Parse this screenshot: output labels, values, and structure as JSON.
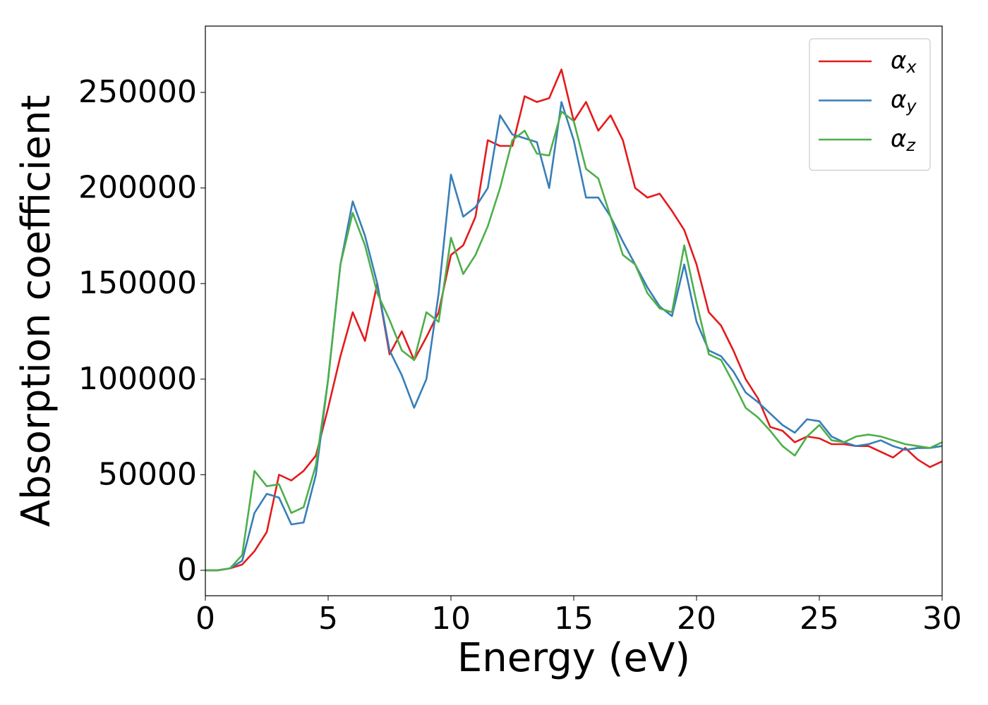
{
  "chart_data": {
    "type": "line",
    "xlabel": "Energy (eV)",
    "ylabel": "Absorption coefficient",
    "x": [
      0,
      0.5,
      1,
      1.5,
      2,
      2.5,
      3,
      3.5,
      4,
      4.5,
      5,
      5.5,
      6,
      6.5,
      7,
      7.5,
      8,
      8.5,
      9,
      9.5,
      10,
      10.5,
      11,
      11.5,
      12,
      12.5,
      13,
      13.5,
      14,
      14.5,
      15,
      15.5,
      16,
      16.5,
      17,
      17.5,
      18,
      18.5,
      19,
      19.5,
      20,
      20.5,
      21,
      21.5,
      22,
      22.5,
      23,
      23.5,
      24,
      24.5,
      25,
      25.5,
      26,
      26.5,
      27,
      27.5,
      28,
      28.5,
      29,
      29.5,
      30
    ],
    "series": [
      {
        "name": "αx",
        "color": "#e41a1c",
        "values": [
          0,
          0,
          1000,
          3000,
          10000,
          20000,
          50000,
          47000,
          52000,
          60000,
          85000,
          112000,
          135000,
          120000,
          150000,
          113000,
          125000,
          110000,
          122000,
          135000,
          165000,
          170000,
          185000,
          225000,
          222000,
          222000,
          248000,
          245000,
          247000,
          262000,
          235000,
          245000,
          230000,
          238000,
          225000,
          200000,
          195000,
          197000,
          188000,
          178000,
          160000,
          135000,
          128000,
          115000,
          100000,
          90000,
          75000,
          73000,
          67000,
          70000,
          69000,
          66000,
          66000,
          65000,
          65000,
          62000,
          59000,
          64000,
          58000,
          54000,
          57000
        ]
      },
      {
        "name": "αy",
        "color": "#377eb8",
        "values": [
          0,
          0,
          1000,
          5000,
          30000,
          40000,
          38000,
          24000,
          25000,
          50000,
          100000,
          160000,
          193000,
          175000,
          150000,
          115000,
          102000,
          85000,
          100000,
          145000,
          207000,
          185000,
          190000,
          200000,
          238000,
          228000,
          226000,
          224000,
          200000,
          245000,
          225000,
          195000,
          195000,
          185000,
          172000,
          160000,
          148000,
          138000,
          133000,
          160000,
          130000,
          115000,
          112000,
          104000,
          93000,
          88000,
          82000,
          76000,
          72000,
          79000,
          78000,
          70000,
          67000,
          65000,
          66000,
          68000,
          65000,
          63000,
          64000,
          64000,
          65000
        ]
      },
      {
        "name": "αz",
        "color": "#4daf4a",
        "values": [
          0,
          0,
          1000,
          8000,
          52000,
          44000,
          45000,
          30000,
          33000,
          55000,
          100000,
          160000,
          187000,
          170000,
          145000,
          131000,
          115000,
          110000,
          135000,
          130000,
          174000,
          155000,
          165000,
          180000,
          200000,
          225000,
          230000,
          218000,
          217000,
          240000,
          235000,
          210000,
          205000,
          185000,
          165000,
          160000,
          145000,
          137000,
          135000,
          170000,
          140000,
          113000,
          110000,
          98000,
          85000,
          80000,
          73000,
          65000,
          60000,
          70000,
          76000,
          68000,
          67000,
          70000,
          71000,
          70000,
          68000,
          66000,
          65000,
          64000,
          67000
        ]
      }
    ],
    "xlim": [
      0,
      30
    ],
    "xticks": [
      0,
      5,
      10,
      15,
      20,
      25,
      30
    ],
    "ylim": [
      -13300,
      284700
    ],
    "yticks": [
      0,
      50000,
      100000,
      150000,
      200000,
      250000
    ],
    "grid": false,
    "legend": "upper right"
  }
}
